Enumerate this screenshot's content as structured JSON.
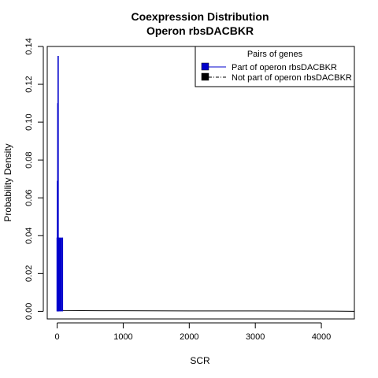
{
  "chart_data": {
    "type": "line",
    "title": "Coexpression Distribution",
    "subtitle": "Operon rbsDACBKR",
    "xlabel": "SCR",
    "ylabel": "Probability Density",
    "xlim": [
      -150,
      4500
    ],
    "ylim": [
      -0.004,
      0.14
    ],
    "x_ticks": [
      0,
      1000,
      2000,
      3000,
      4000
    ],
    "y_ticks": [
      0.0,
      0.02,
      0.04,
      0.06,
      0.08,
      0.1,
      0.12,
      0.14
    ],
    "x_tick_labels": [
      "0",
      "1000",
      "2000",
      "3000",
      "4000"
    ],
    "y_tick_labels": [
      "0.00",
      "0.02",
      "0.04",
      "0.06",
      "0.08",
      "0.10",
      "0.12",
      "0.14"
    ],
    "grid": false,
    "legend": {
      "title": "Pairs of genes",
      "placement": "top-right",
      "entries": [
        {
          "label": "Part of operon rbsDACBKR",
          "color": "#0000cc",
          "line": "solid"
        },
        {
          "label": "Not part of operon rbsDACBKR",
          "color": "#000000",
          "line": "dashdot"
        }
      ]
    },
    "series": [
      {
        "name": "Part of operon rbsDACBKR",
        "color": "#0000cc",
        "style": "spikes",
        "x": [
          0,
          5,
          10,
          15,
          20,
          30,
          45,
          60,
          80
        ],
        "y": [
          0.039,
          0.069,
          0.11,
          0.135,
          0.039,
          0.039,
          0.039,
          0.039,
          0.039
        ]
      },
      {
        "name": "Not part of operon rbsDACBKR",
        "color": "#000000",
        "style": "line",
        "x": [
          0,
          100,
          1000,
          2000,
          3000,
          4200,
          4500
        ],
        "y": [
          0.0005,
          0.0004,
          0.0003,
          0.0002,
          0.0002,
          0.0001,
          0.0
        ]
      }
    ]
  }
}
